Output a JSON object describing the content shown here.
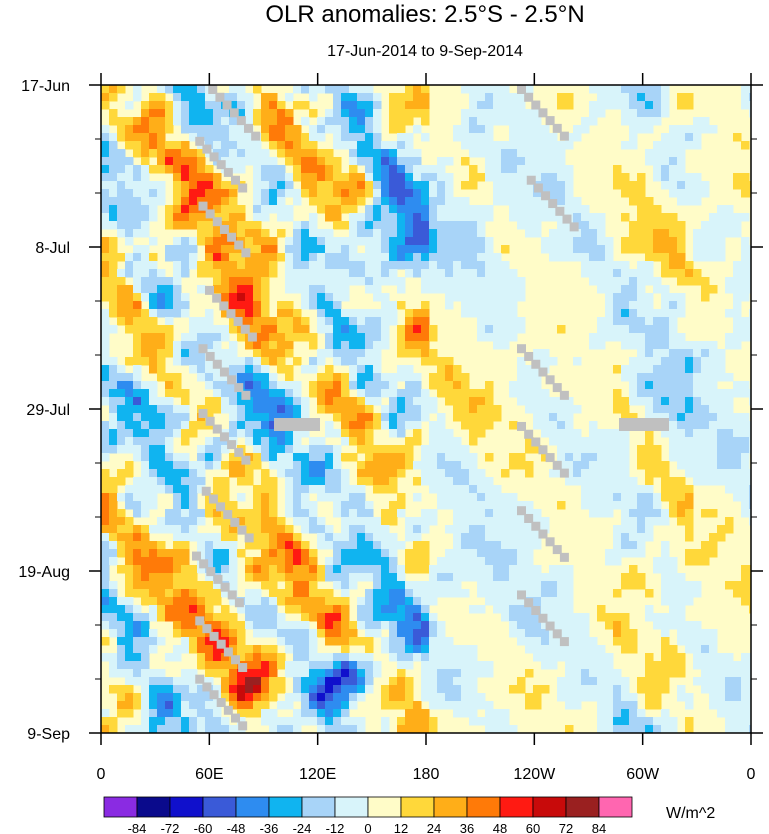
{
  "chart_data": {
    "type": "heatmap",
    "title": "OLR anomalies: 2.5°S - 2.5°N",
    "subtitle": "17-Jun-2014 to 9-Sep-2014",
    "x_ticks": [
      "0",
      "60E",
      "120E",
      "180",
      "120W",
      "60W",
      "0"
    ],
    "y_ticks": [
      "17-Jun",
      "8-Jul",
      "29-Jul",
      "19-Aug",
      "9-Sep"
    ],
    "colorbar": {
      "labels": [
        "-84",
        "-72",
        "-60",
        "-48",
        "-36",
        "-24",
        "-12",
        "0",
        "12",
        "24",
        "36",
        "48",
        "60",
        "72",
        "84"
      ],
      "colors": [
        "#8a2be2",
        "#0a0a8c",
        "#1010cc",
        "#3a5ad8",
        "#2e8cf0",
        "#10b4f0",
        "#a8d4f8",
        "#d8f4fa",
        "#fffcc8",
        "#ffd83a",
        "#ffae18",
        "#ff7a08",
        "#ff1a12",
        "#c80a0a",
        "#9a2020",
        "#ff66b0"
      ],
      "units": "W/m^2"
    },
    "missing_color": "#c0c0c0",
    "x_range_deg_east": [
      0,
      360
    ],
    "days": 85
  }
}
